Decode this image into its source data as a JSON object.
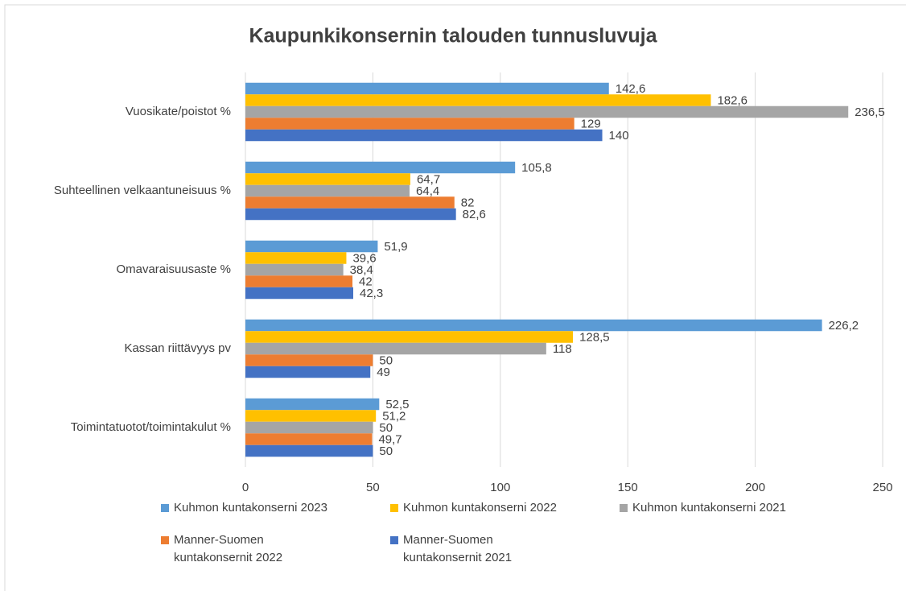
{
  "chart_data": {
    "type": "bar",
    "orientation": "horizontal",
    "title": "Kaupunkikonsernin talouden tunnusluvuja",
    "categories": [
      "Vuosikate/poistot %",
      "Suhteellinen velkaantuneisuus %",
      "Omavaraisuusaste %",
      "Kassan riittävyys pv",
      "Toimintatuotot/toimintakulut %"
    ],
    "series": [
      {
        "name": "Kuhmon kuntakonserni 2023",
        "color": "#5b9bd5",
        "values": [
          142.6,
          105.8,
          51.9,
          226.2,
          52.5
        ],
        "value_labels": [
          "142,6",
          "105,8",
          "51,9",
          "226,2",
          "52,5"
        ]
      },
      {
        "name": "Kuhmon kuntakonserni 2022",
        "color": "#ffc000",
        "values": [
          182.6,
          64.7,
          39.6,
          128.5,
          51.2
        ],
        "value_labels": [
          "182,6",
          "64,7",
          "39,6",
          "128,5",
          "51,2"
        ]
      },
      {
        "name": "Kuhmon kuntakonserni 2021",
        "color": "#a5a5a5",
        "values": [
          236.5,
          64.4,
          38.4,
          118,
          50
        ],
        "value_labels": [
          "236,5",
          "64,4",
          "38,4",
          "118",
          "50"
        ]
      },
      {
        "name": "Manner-Suomen kuntakonsernit 2022",
        "color": "#ed7d31",
        "values": [
          129,
          82,
          42,
          50,
          49.7
        ],
        "value_labels": [
          "129",
          "82",
          "42",
          "50",
          "49,7"
        ]
      },
      {
        "name": "Manner-Suomen kuntakonsernit 2021",
        "color": "#4472c4",
        "values": [
          140,
          82.6,
          42.3,
          49,
          50
        ],
        "value_labels": [
          "140",
          "82,6",
          "42,3",
          "49",
          "50"
        ]
      }
    ],
    "xlim": [
      0,
      250
    ],
    "xticks": [
      0,
      50,
      100,
      150,
      200,
      250
    ],
    "grid": true,
    "legend": "bottom"
  }
}
